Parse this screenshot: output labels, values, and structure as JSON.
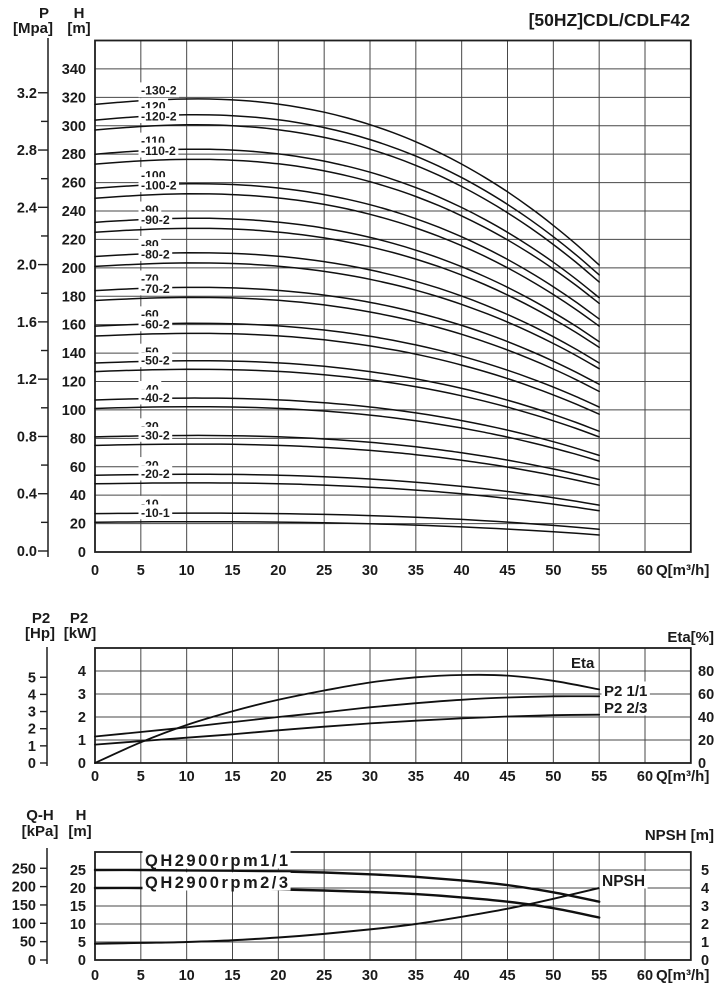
{
  "title": "[50HZ]CDL/CDLF42",
  "colors": {
    "ink": "#1a1a1a",
    "grid": "#474747",
    "border": "#1f1f1f",
    "curve": "#101010",
    "background": "#ffffff"
  },
  "chart_data": [
    {
      "id": "head-curves",
      "type": "line",
      "title": "[50HZ]CDL/CDLF42",
      "x_label": "Q[m³/h]",
      "x_ticks": [
        0,
        5,
        10,
        15,
        20,
        25,
        30,
        35,
        40,
        45,
        50,
        55,
        60
      ],
      "x_plot_max": 65,
      "left_axis_outer": {
        "name": "P",
        "unit": "[Mpa]",
        "tick_labels": [
          "0.0",
          "0.4",
          "0.8",
          "1.2",
          "1.6",
          "2.0",
          "2.4",
          "2.8",
          "3.2"
        ],
        "minor_step": 0.2,
        "labeled_step": 0.4
      },
      "left_axis_inner": {
        "name": "H",
        "unit": "[m]",
        "tick_min": 0,
        "tick_max": 340,
        "tick_step": 20,
        "plot_max": 360
      },
      "curves_end_q": 55,
      "curves": [
        {
          "label": "-130-2",
          "shutoff_head_m": 315,
          "head_at_q55_m": 202
        },
        {
          "label": "-120",
          "shutoff_head_m": 304,
          "head_at_q55_m": 195
        },
        {
          "label": "-120-2",
          "shutoff_head_m": 297,
          "head_at_q55_m": 190
        },
        {
          "label": "-110",
          "shutoff_head_m": 280,
          "head_at_q55_m": 179
        },
        {
          "label": "-110-2",
          "shutoff_head_m": 273,
          "head_at_q55_m": 175
        },
        {
          "label": "-100",
          "shutoff_head_m": 256,
          "head_at_q55_m": 164
        },
        {
          "label": "-100-2",
          "shutoff_head_m": 249,
          "head_at_q55_m": 159
        },
        {
          "label": "-90",
          "shutoff_head_m": 232,
          "head_at_q55_m": 148
        },
        {
          "label": "-90-2",
          "shutoff_head_m": 225,
          "head_at_q55_m": 144
        },
        {
          "label": "-80",
          "shutoff_head_m": 208,
          "head_at_q55_m": 133
        },
        {
          "label": "-80-2",
          "shutoff_head_m": 201,
          "head_at_q55_m": 129
        },
        {
          "label": "-70",
          "shutoff_head_m": 184,
          "head_at_q55_m": 118
        },
        {
          "label": "-70-2",
          "shutoff_head_m": 177,
          "head_at_q55_m": 113
        },
        {
          "label": "-60",
          "shutoff_head_m": 159,
          "head_at_q55_m": 102
        },
        {
          "label": "-60-2",
          "shutoff_head_m": 152,
          "head_at_q55_m": 97
        },
        {
          "label": "-50",
          "shutoff_head_m": 133,
          "head_at_q55_m": 85
        },
        {
          "label": "-50-2",
          "shutoff_head_m": 127,
          "head_at_q55_m": 81
        },
        {
          "label": "-40",
          "shutoff_head_m": 107,
          "head_at_q55_m": 68
        },
        {
          "label": "-40-2",
          "shutoff_head_m": 101,
          "head_at_q55_m": 64
        },
        {
          "label": "-30",
          "shutoff_head_m": 81,
          "head_at_q55_m": 51
        },
        {
          "label": "-30-2",
          "shutoff_head_m": 75,
          "head_at_q55_m": 47
        },
        {
          "label": "-20",
          "shutoff_head_m": 54,
          "head_at_q55_m": 33
        },
        {
          "label": "-20-2",
          "shutoff_head_m": 48,
          "head_at_q55_m": 29
        },
        {
          "label": "-10",
          "shutoff_head_m": 27,
          "head_at_q55_m": 16
        },
        {
          "label": "-10-1",
          "shutoff_head_m": 21,
          "head_at_q55_m": 12
        }
      ]
    },
    {
      "id": "power-efficiency",
      "type": "line",
      "x_label": "Q[m³/h]",
      "x_ticks": [
        0,
        5,
        10,
        15,
        20,
        25,
        30,
        35,
        40,
        45,
        50,
        55,
        60
      ],
      "x_plot_max": 65,
      "left_axis_outer": {
        "name": "P2",
        "unit": "[Hp]",
        "ticks": [
          0,
          1,
          2,
          3,
          4,
          5
        ]
      },
      "left_axis_inner": {
        "name": "P2",
        "unit": "[kW]",
        "ticks": [
          0,
          1,
          2,
          3,
          4
        ],
        "plot_max": 5
      },
      "right_axis": {
        "name": "Eta[%]",
        "ticks": [
          0,
          20,
          40,
          60,
          80
        ],
        "plot_max": 100
      },
      "q_values": [
        0,
        5,
        10,
        15,
        20,
        25,
        30,
        35,
        40,
        45,
        50,
        55
      ],
      "series": [
        {
          "name": "Eta",
          "axis": "eta_pct",
          "values": [
            0,
            18,
            33,
            45,
            55,
            63,
            70,
            74.5,
            76.5,
            76,
            71.5,
            64
          ]
        },
        {
          "name": "P2 1/1",
          "axis": "kw",
          "values": [
            1.15,
            1.35,
            1.55,
            1.78,
            2.0,
            2.2,
            2.42,
            2.6,
            2.75,
            2.85,
            2.9,
            2.9
          ]
        },
        {
          "name": "P2 2/3",
          "axis": "kw",
          "values": [
            0.8,
            0.95,
            1.1,
            1.25,
            1.42,
            1.58,
            1.72,
            1.84,
            1.94,
            2.02,
            2.08,
            2.1
          ]
        }
      ]
    },
    {
      "id": "qh-npsh",
      "type": "line",
      "x_label": "Q[m³/h]",
      "x_ticks": [
        0,
        5,
        10,
        15,
        20,
        25,
        30,
        35,
        40,
        45,
        50,
        55,
        60
      ],
      "x_plot_max": 65,
      "left_axis_outer": {
        "name": "Q-H",
        "unit": "[kPa]",
        "ticks": [
          0,
          50,
          100,
          150,
          200,
          250
        ]
      },
      "left_axis_inner": {
        "name": "H",
        "unit": "[m]",
        "ticks": [
          0,
          5,
          10,
          15,
          20,
          25
        ],
        "plot_max": 30
      },
      "right_axis": {
        "name": "NPSH [m]",
        "ticks": [
          0,
          1,
          2,
          3,
          4,
          5
        ],
        "plot_max": 6
      },
      "q_values": [
        0,
        5,
        10,
        15,
        20,
        25,
        30,
        35,
        40,
        45,
        50,
        55
      ],
      "series": [
        {
          "name": "QH2900rpm1/1",
          "axis": "m",
          "values": [
            25,
            25,
            24.9,
            24.8,
            24.6,
            24.3,
            23.8,
            23.1,
            22.1,
            20.8,
            18.8,
            16.2
          ]
        },
        {
          "name": "QH2900rpm2/3",
          "axis": "m",
          "values": [
            20,
            20,
            19.9,
            19.8,
            19.6,
            19.3,
            18.9,
            18.3,
            17.4,
            16.2,
            14.4,
            11.8
          ]
        },
        {
          "name": "NPSH",
          "axis": "npsh_m",
          "values": [
            0.9,
            0.95,
            1.0,
            1.1,
            1.25,
            1.45,
            1.7,
            2.0,
            2.4,
            2.85,
            3.4,
            4.0
          ]
        }
      ]
    }
  ]
}
